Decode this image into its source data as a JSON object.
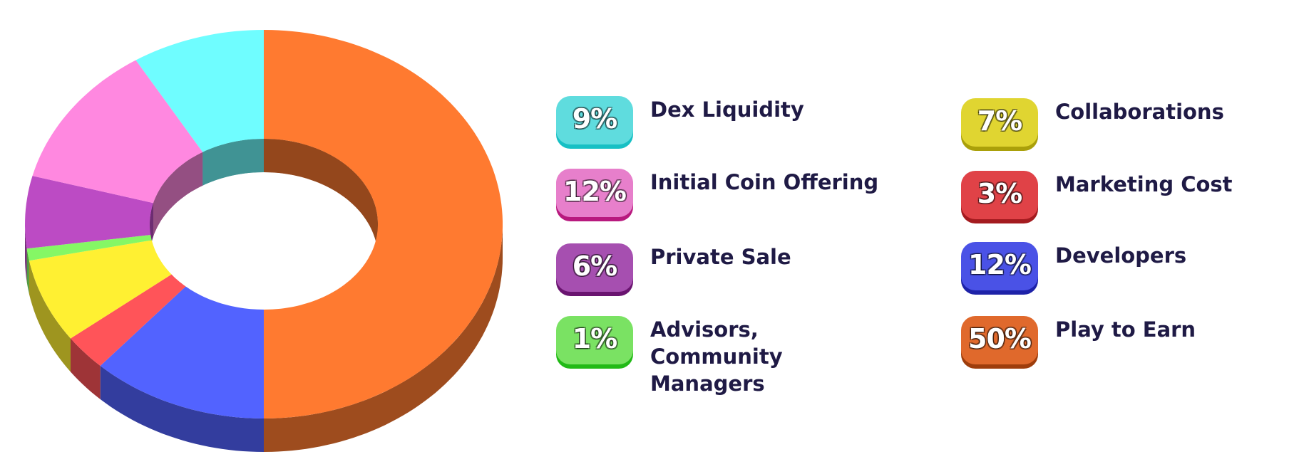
{
  "chart_data": {
    "type": "pie",
    "slices": [
      {
        "label": "Dex Liquidity",
        "value": 9,
        "value_label": "9%",
        "color": "#6ffdff",
        "badge_color": "#5fdcde",
        "badge_shadow": "#17c0c4"
      },
      {
        "label": "Initial Coin Offering",
        "value": 12,
        "value_label": "12%",
        "color": "#ff88e0",
        "badge_color": "#e77fcb",
        "badge_shadow": "#b8197e"
      },
      {
        "label": "Private Sale",
        "value": 6,
        "value_label": "6%",
        "color": "#bc4bc4",
        "badge_color": "#a64fb0",
        "badge_shadow": "#6a1470"
      },
      {
        "label": "Advisors, Community Managers",
        "value": 1,
        "value_label": "1%",
        "color": "#85f765",
        "badge_color": "#7ae263",
        "badge_shadow": "#21ba16"
      },
      {
        "label": "Collaborations",
        "value": 7,
        "value_label": "7%",
        "color": "#fff032",
        "badge_color": "#e0d531",
        "badge_shadow": "#aaa00a"
      },
      {
        "label": "Marketing Cost",
        "value": 3,
        "value_label": "3%",
        "color": "#ff5459",
        "badge_color": "#e04247",
        "badge_shadow": "#a41b1f"
      },
      {
        "label": "Developers",
        "value": 12,
        "value_label": "12%",
        "color": "#5263ff",
        "badge_color": "#4a52e6",
        "badge_shadow": "#1e22a8"
      },
      {
        "label": "Play to Earn",
        "value": 50,
        "value_label": "50%",
        "color": "#ff7a30",
        "badge_color": "#e0692c",
        "badge_shadow": "#9e3d0c"
      }
    ]
  },
  "legend_left": [
    {
      "pct": "9%",
      "label": "Dex Liquidity"
    },
    {
      "pct": "12%",
      "label": "Initial Coin Offering"
    },
    {
      "pct": "6%",
      "label": "Private Sale"
    },
    {
      "pct": "1%",
      "label": "Advisors, Community Managers"
    }
  ],
  "legend_right": [
    {
      "pct": "7%",
      "label": "Collaborations"
    },
    {
      "pct": "3%",
      "label": "Marketing Cost"
    },
    {
      "pct": "12%",
      "label": "Developers"
    },
    {
      "pct": "50%",
      "label": "Play to Earn"
    }
  ]
}
